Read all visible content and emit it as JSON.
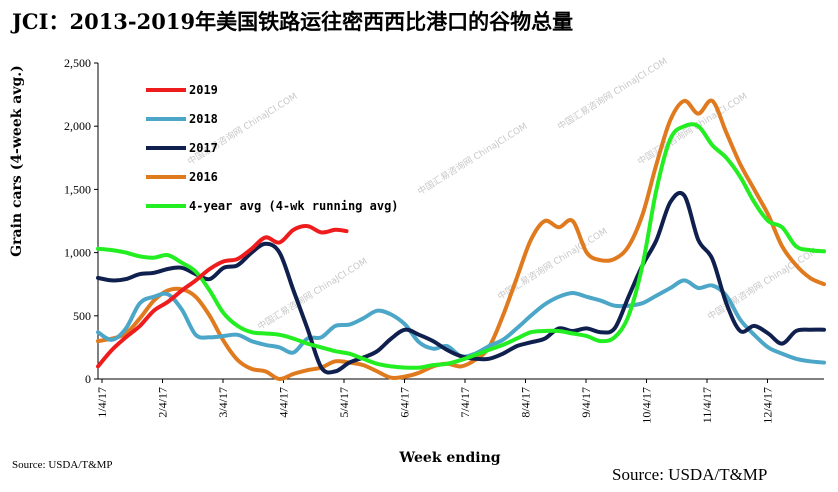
{
  "title": "JCI：2013-2019年美国铁路运往密西西比港口的谷物总量",
  "source_small": "Source: USDA/T&MP",
  "source_big": "Source: USDA/T&MP",
  "watermark": "中国汇易咨询网 ChinaJCI.COM",
  "chart_data": {
    "type": "line",
    "title": "JCI：2013-2019年美国铁路运往密西西比港口的谷物总量",
    "xlabel": "Week ending",
    "ylabel": "Grain cars (4-week avg.)",
    "ylim": [
      0,
      2500
    ],
    "yticks": [
      "0",
      "500",
      "1,000",
      "1,500",
      "2,000",
      "2,500"
    ],
    "ytick_values": [
      0,
      500,
      1000,
      1500,
      2000,
      2500
    ],
    "xticks": [
      "1/4/17",
      "2/4/17",
      "3/4/17",
      "4/4/17",
      "5/4/17",
      "6/4/17",
      "7/4/17",
      "8/4/17",
      "9/4/17",
      "10/4/17",
      "11/4/17",
      "12/4/17"
    ],
    "xlim_weeks": [
      0,
      52
    ],
    "grid": false,
    "legend_position": "top-left",
    "series": [
      {
        "name": "2019",
        "color": "#ee1c1c",
        "x": [
          0,
          1,
          2,
          3,
          4,
          5,
          6,
          7,
          8,
          9,
          10,
          11,
          12,
          13,
          14,
          15,
          16,
          17,
          17.8
        ],
        "y": [
          100,
          230,
          330,
          420,
          540,
          610,
          700,
          780,
          870,
          930,
          950,
          1030,
          1120,
          1080,
          1180,
          1210,
          1160,
          1180,
          1170
        ]
      },
      {
        "name": "2018",
        "color": "#4ba6c8",
        "x": [
          0,
          1,
          2,
          3,
          4,
          5,
          6,
          7,
          8,
          9,
          10,
          11,
          12,
          13,
          14,
          15,
          16,
          17,
          18,
          19,
          20,
          21,
          22,
          23,
          24,
          25,
          26,
          27,
          28,
          29,
          30,
          31,
          32,
          33,
          34,
          35,
          36,
          37,
          38,
          39,
          40,
          41,
          42,
          43,
          44,
          45,
          46,
          47,
          48,
          49,
          50,
          51,
          52
        ],
        "y": [
          370,
          310,
          400,
          600,
          650,
          670,
          550,
          350,
          330,
          340,
          350,
          300,
          270,
          250,
          210,
          320,
          330,
          420,
          430,
          480,
          540,
          510,
          430,
          290,
          240,
          260,
          180,
          200,
          260,
          310,
          400,
          500,
          590,
          650,
          680,
          650,
          620,
          580,
          580,
          600,
          660,
          720,
          780,
          720,
          740,
          660,
          470,
          350,
          250,
          200,
          160,
          140,
          130
        ]
      },
      {
        "name": "2017",
        "color": "#10204e",
        "x": [
          0,
          1,
          2,
          3,
          4,
          5,
          6,
          7,
          8,
          9,
          10,
          11,
          12,
          13,
          14,
          15,
          16,
          17,
          18,
          19,
          20,
          21,
          22,
          23,
          24,
          25,
          26,
          27,
          28,
          29,
          30,
          31,
          32,
          33,
          34,
          35,
          36,
          37,
          38,
          39,
          40,
          41,
          42,
          43,
          44,
          45,
          46,
          47,
          48,
          49,
          50,
          51,
          52
        ],
        "y": [
          800,
          780,
          790,
          830,
          840,
          870,
          880,
          830,
          790,
          880,
          900,
          1000,
          1070,
          1000,
          700,
          400,
          90,
          60,
          130,
          170,
          220,
          320,
          390,
          350,
          300,
          230,
          180,
          160,
          160,
          200,
          260,
          290,
          320,
          400,
          380,
          400,
          370,
          400,
          650,
          900,
          1100,
          1400,
          1450,
          1100,
          950,
          600,
          380,
          420,
          360,
          280,
          380,
          390,
          390
        ]
      },
      {
        "name": "2016",
        "color": "#e07a1e",
        "x": [
          0,
          1,
          2,
          3,
          4,
          5,
          6,
          7,
          8,
          9,
          10,
          11,
          12,
          13,
          14,
          15,
          16,
          17,
          18,
          19,
          20,
          21,
          22,
          23,
          24,
          25,
          26,
          27,
          28,
          29,
          30,
          31,
          32,
          33,
          34,
          35,
          36,
          37,
          38,
          39,
          40,
          41,
          42,
          43,
          44,
          45,
          46,
          47,
          48,
          49,
          50,
          51,
          52
        ],
        "y": [
          300,
          320,
          360,
          480,
          620,
          700,
          710,
          650,
          500,
          300,
          150,
          80,
          60,
          0,
          40,
          70,
          90,
          140,
          130,
          110,
          60,
          10,
          20,
          50,
          100,
          120,
          100,
          150,
          250,
          500,
          800,
          1100,
          1250,
          1200,
          1250,
          1000,
          940,
          950,
          1050,
          1300,
          1700,
          2050,
          2200,
          2100,
          2200,
          1950,
          1700,
          1500,
          1300,
          1050,
          900,
          800,
          750
        ]
      },
      {
        "name": "4-year avg (4-wk running avg)",
        "color": "#22ee22",
        "x": [
          0,
          1,
          2,
          3,
          4,
          5,
          6,
          7,
          8,
          9,
          10,
          11,
          12,
          13,
          14,
          15,
          16,
          17,
          18,
          19,
          20,
          21,
          22,
          23,
          24,
          25,
          26,
          27,
          28,
          29,
          30,
          31,
          32,
          33,
          34,
          35,
          36,
          37,
          38,
          39,
          40,
          41,
          42,
          43,
          44,
          45,
          46,
          47,
          48,
          49,
          50,
          51,
          52
        ],
        "y": [
          1030,
          1020,
          1000,
          970,
          960,
          980,
          920,
          850,
          700,
          520,
          420,
          370,
          360,
          350,
          320,
          280,
          250,
          220,
          200,
          160,
          120,
          100,
          90,
          90,
          110,
          120,
          150,
          190,
          230,
          270,
          320,
          370,
          380,
          380,
          360,
          340,
          300,
          330,
          500,
          900,
          1500,
          1900,
          2000,
          2000,
          1850,
          1750,
          1600,
          1400,
          1250,
          1200,
          1050,
          1020,
          1010
        ]
      }
    ]
  }
}
